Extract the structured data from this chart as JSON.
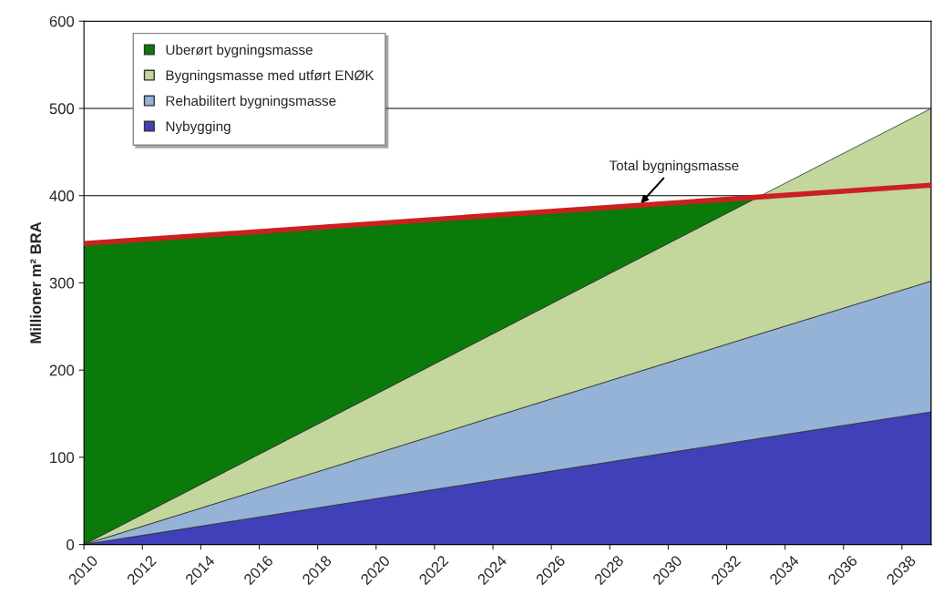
{
  "chart_data": {
    "type": "area",
    "stacked": true,
    "ylabel": "Millioner m² BRA",
    "x": [
      2010,
      2033,
      2039
    ],
    "series": [
      {
        "name": "Nybygging",
        "color": "#4040b8",
        "values": [
          0,
          121,
          152
        ]
      },
      {
        "name": "Rehabilitert bygningsmasse",
        "color": "#95b3d7",
        "values": [
          0,
          119,
          150
        ]
      },
      {
        "name": "Bygningsmasse med utført ENØK",
        "color": "#c3d69b",
        "values": [
          0,
          157,
          198
        ]
      },
      {
        "name": "Uberørt bygningsmasse",
        "color": "#0a7a0a",
        "x": [
          2010,
          2033
        ],
        "values": [
          345,
          2
        ]
      },
      {
        "type": "line",
        "color": "#cc2020",
        "x": [
          2010,
          2039
        ],
        "values": [
          345,
          412
        ]
      }
    ],
    "annotations": [
      {
        "text": "Total bygningsmasse",
        "x": 2029,
        "y": 389
      }
    ],
    "xlim": [
      2010,
      2039
    ],
    "xticks": [
      2010,
      2012,
      2014,
      2016,
      2018,
      2020,
      2022,
      2024,
      2026,
      2028,
      2030,
      2032,
      2034,
      2036,
      2038
    ],
    "ylim": [
      0,
      600
    ],
    "yticks": [
      0,
      100,
      200,
      300,
      400,
      500,
      600
    ],
    "grid": "y",
    "legend": "top left"
  }
}
